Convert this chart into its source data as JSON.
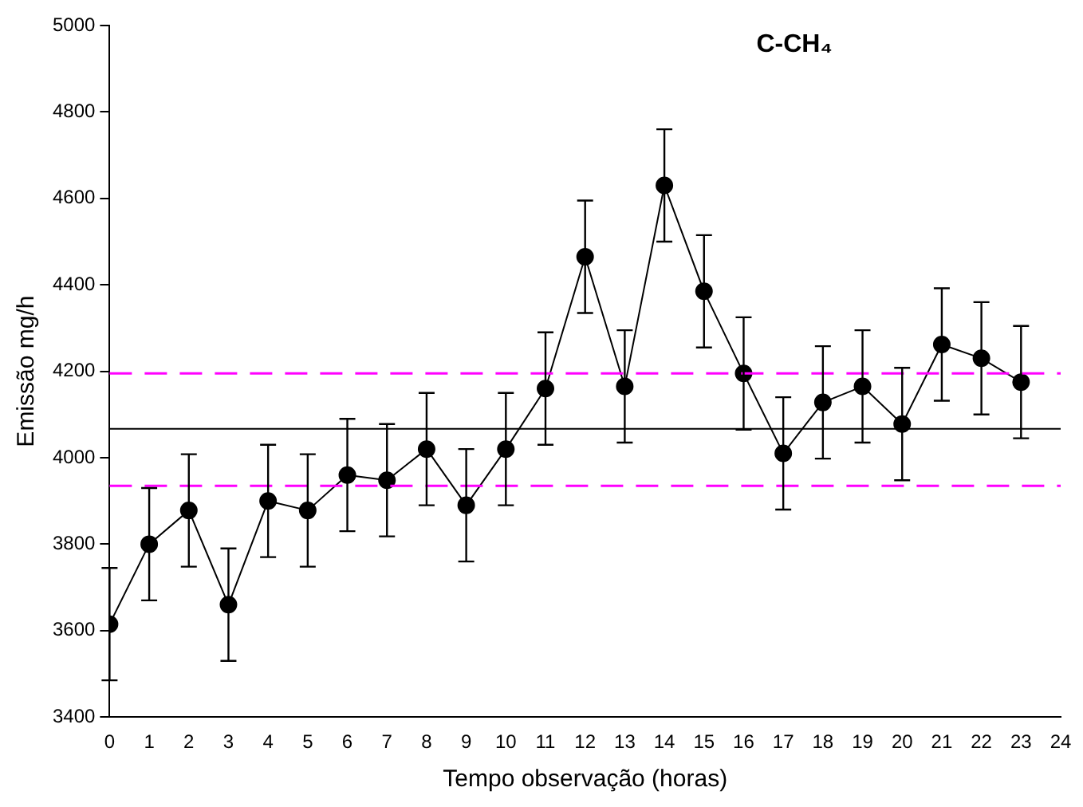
{
  "chart_data": {
    "type": "line",
    "title": "C-CH₄",
    "xlabel": "Tempo observação (horas)",
    "ylabel": "Emissão mg/h",
    "x": [
      0,
      1,
      2,
      3,
      4,
      5,
      6,
      7,
      8,
      9,
      10,
      11,
      12,
      13,
      14,
      15,
      16,
      17,
      18,
      19,
      20,
      21,
      22,
      23
    ],
    "series": [
      {
        "color": "#000000",
        "values": [
          3615,
          3800,
          3878,
          3660,
          3900,
          3878,
          3960,
          3948,
          4020,
          3890,
          4020,
          4160,
          4465,
          4165,
          4630,
          4385,
          4195,
          4010,
          4128,
          4165,
          4078,
          4262,
          4230,
          4175
        ],
        "errors": [
          130,
          130,
          130,
          130,
          130,
          130,
          130,
          130,
          130,
          130,
          130,
          130,
          130,
          130,
          130,
          130,
          130,
          130,
          130,
          130,
          130,
          130,
          130,
          130
        ]
      }
    ],
    "xlim": [
      0,
      24
    ],
    "xticks": [
      0,
      1,
      2,
      3,
      4,
      5,
      6,
      7,
      8,
      9,
      10,
      11,
      12,
      13,
      14,
      15,
      16,
      17,
      18,
      19,
      20,
      21,
      22,
      23,
      24
    ],
    "ylim": [
      3400,
      5000
    ],
    "yticks": [
      3400,
      3600,
      3800,
      4000,
      4200,
      4400,
      4600,
      4800,
      5000
    ],
    "ref_lines": [
      {
        "axis": "y",
        "value": 4067,
        "color": "#000000",
        "line_style": "solid"
      },
      {
        "axis": "y",
        "value": 4195,
        "color": "#ff00ff",
        "line_style": "dashed"
      },
      {
        "axis": "y",
        "value": 3935,
        "color": "#ff00ff",
        "line_style": "dashed"
      }
    ],
    "grid": false,
    "legend": false,
    "marker": "circle",
    "line_style": "solid"
  }
}
